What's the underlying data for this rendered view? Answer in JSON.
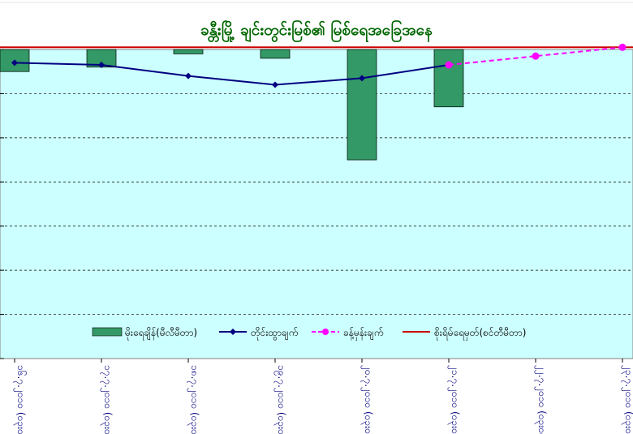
{
  "chart_data": {
    "type": "bar",
    "title": "ခန္တီးမြို့ ချင်းတွင်းမြစ်၏ မြစ်ရေအခြေအနေ",
    "categories": [
      "၁၆.၇.၂၀၁၀ (၀၃း၀၀)",
      "၁၇.၇.၂၀၁၀ (၀၃း၀၀)",
      "၁၈.၇.၂၀၁၀ (၀၃း၀၀)",
      "၁၉.၇.၂၀၁၀ (၀၃း၀၀)",
      "၂၀.၇.၂၀၁၀ (၀၃း၀၀)",
      "၂၁.၇.၂၀၁၀ (၀၃း၀၀)",
      "၂၂.၇.၂၀၁၀ (၀၃း၀၀)",
      "၂၃.၇.၂၀၁၀ (၀၃း၀၀)"
    ],
    "series": [
      {
        "name": "မိုးရေချိန်(မီလီမီတာ)",
        "kind": "bar",
        "color": "#339966",
        "values": [
          -0.5,
          -0.4,
          -0.1,
          -0.2,
          -2.5,
          -1.3,
          null,
          null
        ]
      },
      {
        "name": "တိုင်းထွာချက်",
        "kind": "line",
        "color": "#000080",
        "values": [
          3.2,
          3.15,
          2.9,
          2.7,
          2.85,
          3.15,
          null,
          null
        ]
      },
      {
        "name": "ခန့်မှန်းချက်",
        "kind": "dashed-line",
        "color": "#ff00ff",
        "values": [
          null,
          null,
          null,
          null,
          null,
          3.15,
          3.35,
          3.55
        ]
      },
      {
        "name": "စိုးရိမ်ရေမှတ်(စင်တီမီတာ)",
        "kind": "hline",
        "color": "#cc0000",
        "value": 3.55
      }
    ],
    "ylim": [
      -3.5,
      3.5
    ],
    "grid": true,
    "legend_position": "bottom-inside",
    "colors": {
      "plot_background": "#ccffff",
      "title_color": "#006600",
      "axis_label_color": "#000080",
      "border": "#808080"
    }
  }
}
